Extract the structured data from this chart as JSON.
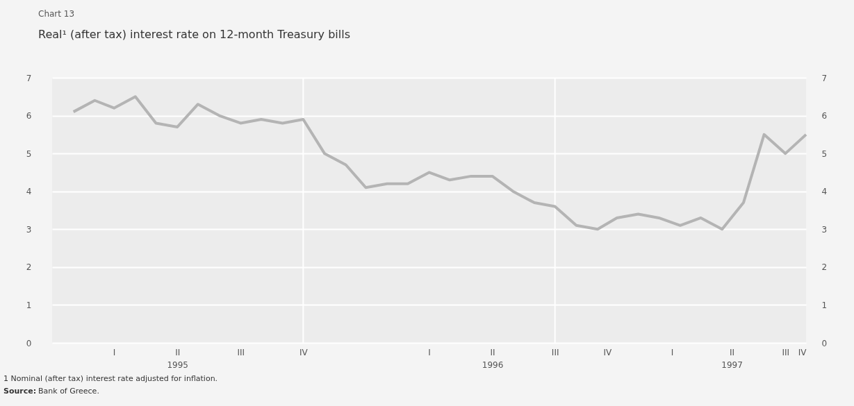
{
  "chart_data": {
    "type": "line",
    "title": "Real¹ (after tax) interest rate on 12-month Treasury bills",
    "annotations": [
      "Chart 13",
      "1 Nominal (after tax) interest rate adjusted for inflation.",
      "Source: Bank of Greece."
    ],
    "x": [
      "1995-01",
      "1995-02",
      "1995-03",
      "1995-04",
      "1995-05",
      "1995-06",
      "1995-07",
      "1995-08",
      "1995-09",
      "1995-10",
      "1995-11",
      "1995-12",
      "1996-01",
      "1996-02",
      "1996-03",
      "1996-04",
      "1996-05",
      "1996-06",
      "1996-07",
      "1996-08",
      "1996-09",
      "1996-10",
      "1996-11",
      "1996-12",
      "1997-01",
      "1997-02",
      "1997-03",
      "1997-04",
      "1997-05",
      "1997-06",
      "1997-07",
      "1997-08",
      "1997-09",
      "1997-10",
      "1997-11",
      "1997-12"
    ],
    "series": [
      {
        "color": "#b4b4b4",
        "values": [
          6.1,
          6.4,
          6.2,
          6.5,
          5.8,
          5.7,
          6.3,
          6.0,
          5.8,
          5.9,
          5.8,
          5.9,
          5.0,
          4.7,
          4.1,
          4.2,
          4.2,
          4.5,
          4.3,
          4.4,
          4.4,
          4.0,
          3.7,
          3.6,
          3.1,
          3.0,
          3.3,
          3.4,
          3.3,
          3.1,
          3.3,
          3.0,
          3.7,
          5.5,
          5.0,
          5.5
        ]
      }
    ],
    "xlim": [
      "1994-12",
      "1997-12"
    ],
    "xticks": [
      {
        "value": "1995-03",
        "label": "I"
      },
      {
        "value": "1995-06",
        "label": "II\n1995"
      },
      {
        "value": "1995-09",
        "label": "III"
      },
      {
        "value": "1995-12",
        "label": "IV"
      },
      {
        "value": "1996-06",
        "label": "I"
      },
      {
        "value": "1996-09",
        "label": "II\n1996"
      },
      {
        "value": "1996-12",
        "label": "III"
      },
      {
        "value": "1997-02-15",
        "label": "IV"
      },
      {
        "value": "1997-05-20",
        "label": "I"
      },
      {
        "value": "1997-08-15",
        "label": "II\n1997"
      },
      {
        "value": "1997-11",
        "label": "III"
      },
      {
        "value": "1997-12",
        "label": "IV"
      }
    ],
    "ylim": [
      0,
      7
    ],
    "yticks": [
      0,
      1,
      2,
      3,
      4,
      5,
      6,
      7
    ],
    "y2lim": [
      0,
      7
    ],
    "y2ticks": [
      0,
      1,
      2,
      3,
      4,
      5,
      6,
      7
    ],
    "grid": "y",
    "line_style": "solid",
    "marker": "none",
    "ref_lines": [
      {
        "axis": "x",
        "value": "1995-12",
        "color": "#ffffff"
      },
      {
        "axis": "x",
        "value": "1996-12",
        "color": "#ffffff"
      }
    ]
  }
}
